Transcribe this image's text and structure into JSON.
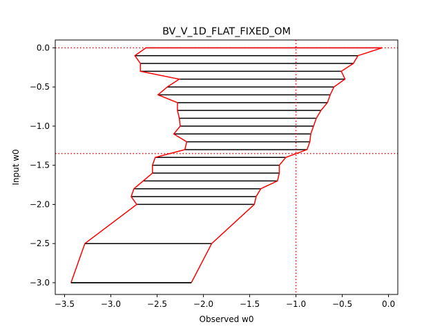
{
  "chart_data": {
    "type": "line",
    "title": "BV_V_1D_FLAT_FIXED_OM",
    "xlabel": "Observed w0",
    "ylabel": "Input w0",
    "xlim": [
      -3.6,
      0.1
    ],
    "ylim": [
      -3.15,
      0.1
    ],
    "xticks": [
      -3.5,
      -3.0,
      -2.5,
      -2.0,
      -1.5,
      -1.0,
      -0.5,
      0.0
    ],
    "xtick_labels": [
      "−3.5",
      "−3.0",
      "−2.5",
      "−2.0",
      "−1.5",
      "−1.0",
      "−0.5",
      "0.0"
    ],
    "yticks": [
      0.0,
      -0.5,
      -1.0,
      -1.5,
      -2.0,
      -2.5,
      -3.0
    ],
    "ytick_labels": [
      "0.0",
      "−0.5",
      "−1.0",
      "−1.5",
      "−2.0",
      "−2.5",
      "−3.0"
    ],
    "reference_lines": {
      "x": -1.0,
      "y": -1.35,
      "color": "#ff0000"
    },
    "band_color": "#ff0000",
    "segment_color": "#000000",
    "grid": false,
    "rows": [
      {
        "y": 0.0,
        "left": -2.62,
        "right": -0.07
      },
      {
        "y": -0.1,
        "left": -2.74,
        "right": -0.33
      },
      {
        "y": -0.2,
        "left": -2.68,
        "right": -0.38
      },
      {
        "y": -0.3,
        "left": -2.68,
        "right": -0.51
      },
      {
        "y": -0.4,
        "left": -2.26,
        "right": -0.47
      },
      {
        "y": -0.5,
        "left": -2.39,
        "right": -0.59
      },
      {
        "y": -0.6,
        "left": -2.49,
        "right": -0.63
      },
      {
        "y": -0.7,
        "left": -2.28,
        "right": -0.66
      },
      {
        "y": -0.8,
        "left": -2.28,
        "right": -0.73
      },
      {
        "y": -0.9,
        "left": -2.26,
        "right": -0.78
      },
      {
        "y": -1.0,
        "left": -2.25,
        "right": -0.81
      },
      {
        "y": -1.1,
        "left": -2.32,
        "right": -0.84
      },
      {
        "y": -1.2,
        "left": -2.18,
        "right": -0.85
      },
      {
        "y": -1.3,
        "left": -2.2,
        "right": -0.88
      },
      {
        "y": -1.4,
        "left": -2.52,
        "right": -1.11
      },
      {
        "y": -1.5,
        "left": -2.55,
        "right": -1.18
      },
      {
        "y": -1.6,
        "left": -2.55,
        "right": -1.18
      },
      {
        "y": -1.7,
        "left": -2.65,
        "right": -1.2
      },
      {
        "y": -1.8,
        "left": -2.75,
        "right": -1.38
      },
      {
        "y": -1.9,
        "left": -2.78,
        "right": -1.43
      },
      {
        "y": -2.0,
        "left": -2.72,
        "right": -1.45
      },
      {
        "y": -2.5,
        "left": -3.28,
        "right": -1.91
      },
      {
        "y": -3.0,
        "left": -3.43,
        "right": -2.13
      }
    ],
    "band_endpoints": {
      "upper_right_y": -1.35,
      "upper_right_x": -1.0,
      "top_left_x": -2.62
    }
  }
}
